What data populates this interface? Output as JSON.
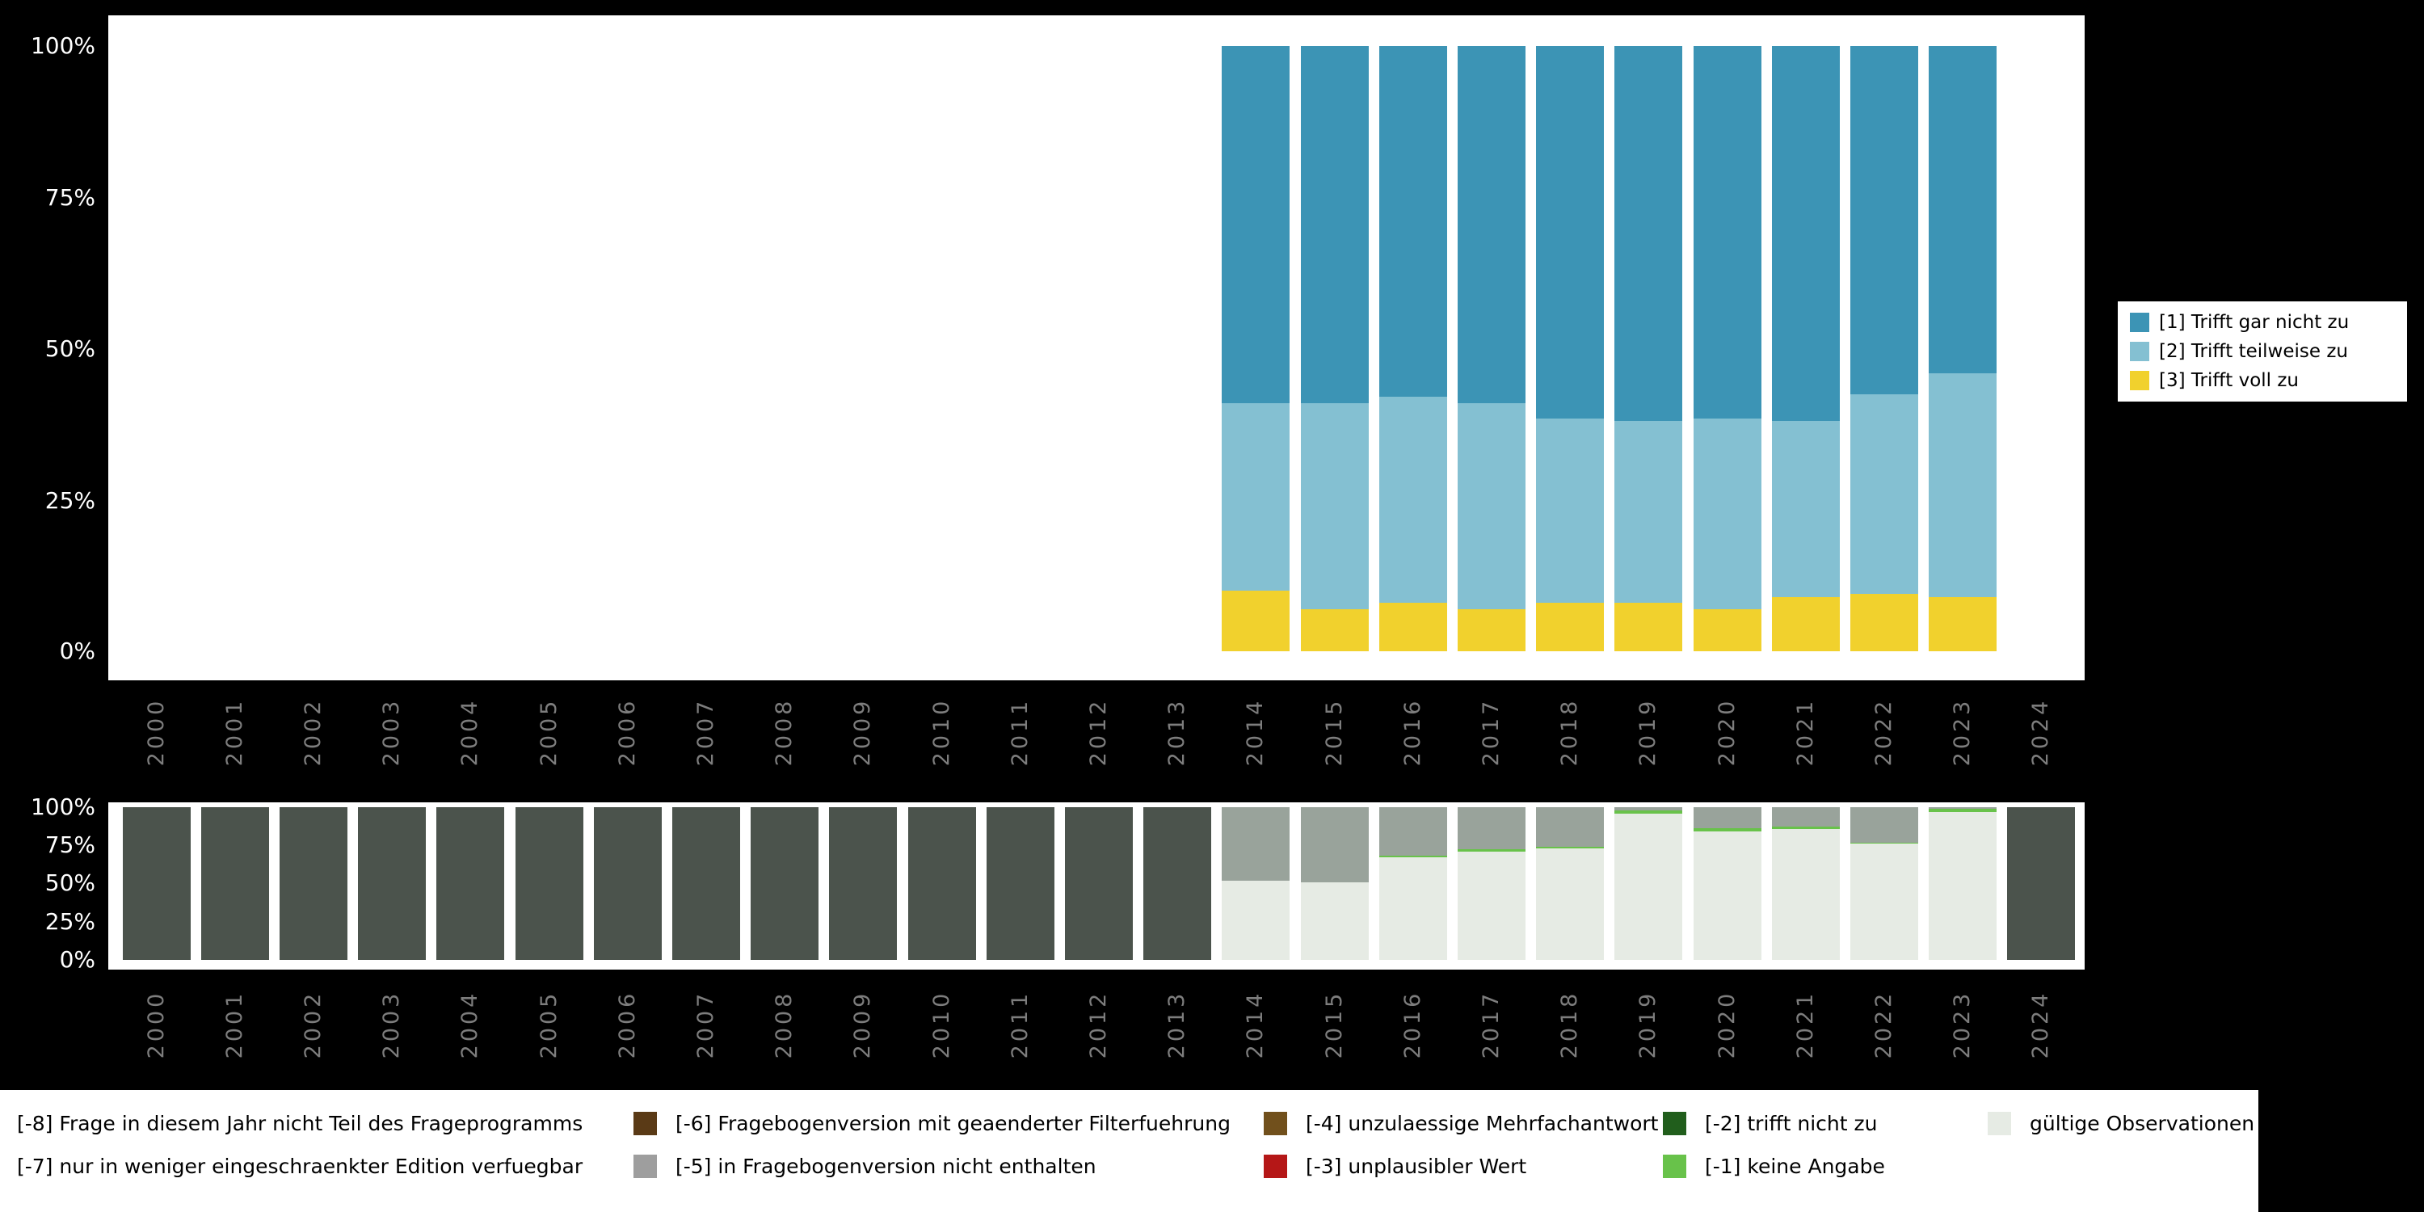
{
  "page": {
    "background": "#000000"
  },
  "chart_data": [
    {
      "id": "responses",
      "type": "bar",
      "stacked": true,
      "title": "",
      "xlabel": "",
      "ylabel": "",
      "ylim": [
        0,
        100
      ],
      "grid": false,
      "legend_position": "right",
      "y_tick_labels": [
        "100%",
        "75%",
        "50%",
        "25%",
        "0%"
      ],
      "categories": [
        "2000",
        "2001",
        "2002",
        "2003",
        "2004",
        "2005",
        "2006",
        "2007",
        "2008",
        "2009",
        "2010",
        "2011",
        "2012",
        "2013",
        "2014",
        "2015",
        "2016",
        "2017",
        "2018",
        "2019",
        "2020",
        "2021",
        "2022",
        "2023",
        "2024"
      ],
      "series": [
        {
          "name": "[3] Trifft voll zu",
          "color": "#f1d12d",
          "values": [
            null,
            null,
            null,
            null,
            null,
            null,
            null,
            null,
            null,
            null,
            null,
            null,
            null,
            null,
            10,
            7,
            8,
            7,
            8,
            8,
            7,
            9,
            9.5,
            9,
            null
          ]
        },
        {
          "name": "[2] Trifft teilweise zu",
          "color": "#84c0d2",
          "values": [
            null,
            null,
            null,
            null,
            null,
            null,
            null,
            null,
            null,
            null,
            null,
            null,
            null,
            null,
            31,
            34,
            34,
            34,
            30.5,
            30,
            31.5,
            29,
            33,
            37,
            null
          ]
        },
        {
          "name": "[1] Trifft gar nicht zu",
          "color": "#3c94b5",
          "values": [
            null,
            null,
            null,
            null,
            null,
            null,
            null,
            null,
            null,
            null,
            null,
            null,
            null,
            null,
            59,
            59,
            58,
            59,
            61.5,
            62,
            61.5,
            62,
            57.5,
            54,
            null
          ]
        }
      ]
    },
    {
      "id": "missings",
      "type": "bar",
      "stacked": true,
      "title": "",
      "xlabel": "",
      "ylabel": "",
      "ylim": [
        0,
        100
      ],
      "grid": false,
      "y_tick_labels": [
        "100%",
        "75%",
        "50%",
        "25%",
        "0%"
      ],
      "categories": [
        "2000",
        "2001",
        "2002",
        "2003",
        "2004",
        "2005",
        "2006",
        "2007",
        "2008",
        "2009",
        "2010",
        "2011",
        "2012",
        "2013",
        "2014",
        "2015",
        "2016",
        "2017",
        "2018",
        "2019",
        "2020",
        "2021",
        "2022",
        "2023",
        "2024"
      ],
      "series": [
        {
          "name": "gültige Observationen",
          "color": "#e6ebe4",
          "values": [
            0,
            0,
            0,
            0,
            0,
            0,
            0,
            0,
            0,
            0,
            0,
            0,
            0,
            0,
            52,
            51,
            67,
            71,
            73,
            96,
            84,
            86,
            76,
            97,
            0
          ]
        },
        {
          "name": "[-1] keine Angabe",
          "color": "#68c24a",
          "values": [
            0,
            0,
            0,
            0,
            0,
            0,
            0,
            0,
            0,
            0,
            0,
            0,
            0,
            0,
            0,
            0,
            1.5,
            1.5,
            1,
            2,
            2,
            1.5,
            1,
            2,
            0
          ]
        },
        {
          "name": "[-5] in Fragebogenversion nicht enthalten",
          "color": "#99a39b",
          "values": [
            0,
            0,
            0,
            0,
            0,
            0,
            0,
            0,
            0,
            0,
            0,
            0,
            0,
            0,
            48,
            49,
            31.5,
            27.5,
            26,
            2,
            14,
            12.5,
            23,
            1,
            0
          ]
        },
        {
          "name": "[-8] Frage in diesem Jahr nicht Teil des Frageprogramms",
          "color": "#4b534c",
          "values": [
            100,
            100,
            100,
            100,
            100,
            100,
            100,
            100,
            100,
            100,
            100,
            100,
            100,
            100,
            0,
            0,
            0,
            0,
            0,
            0,
            0,
            0,
            0,
            0,
            100
          ]
        }
      ]
    }
  ],
  "responses_legend": {
    "items": [
      {
        "label": "[1] Trifft gar nicht zu",
        "color": "#3c94b5"
      },
      {
        "label": "[2] Trifft teilweise zu",
        "color": "#84c0d2"
      },
      {
        "label": "[3] Trifft voll zu",
        "color": "#f1d12d"
      }
    ]
  },
  "missings_legend": {
    "items": [
      {
        "label": "[-8] Frage in diesem Jahr nicht Teil des Frageprogramms",
        "color": "#4b534c"
      },
      {
        "label": "[-7] nur in weniger eingeschraenkter Edition verfuegbar",
        "color": "#8f8f8f"
      },
      {
        "label": "[-6] Fragebogenversion mit geaenderter Filterfuehrung",
        "color": "#5a3a16"
      },
      {
        "label": "[-5] in Fragebogenversion nicht enthalten",
        "color": "#9e9e9e"
      },
      {
        "label": "[-4] unzulaessige Mehrfachantwort",
        "color": "#71501c"
      },
      {
        "label": "[-3] unplausibler Wert",
        "color": "#b51717"
      },
      {
        "label": "[-2] trifft nicht zu",
        "color": "#215e1c"
      },
      {
        "label": "[-1] keine Angabe",
        "color": "#68c24a"
      },
      {
        "label": "gültige Observationen",
        "color": "#e6ebe4"
      }
    ]
  }
}
